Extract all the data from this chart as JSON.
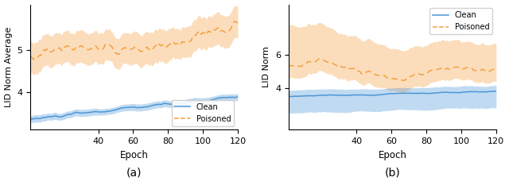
{
  "fig_width": 6.4,
  "fig_height": 2.38,
  "dpi": 100,
  "subplot_a": {
    "title": "(a)",
    "xlabel": "Epoch",
    "ylabel": "LID Norm Average",
    "xticks": [
      40,
      60,
      80,
      100,
      120
    ],
    "yticks_a": [
      4,
      5
    ],
    "clean_color": "#4c96d7",
    "poisoned_color": "#f5a040",
    "clean_fill_alpha": 0.35,
    "poisoned_fill_alpha": 0.35
  },
  "subplot_b": {
    "title": "(b)",
    "xlabel": "Epoch",
    "ylabel": "LID Norm",
    "xticks": [
      40,
      60,
      80,
      100,
      120
    ],
    "yticks_b": [
      4,
      6
    ],
    "clean_color": "#4c96d7",
    "poisoned_color": "#f5a040",
    "clean_fill_alpha": 0.35,
    "poisoned_fill_alpha": 0.35
  }
}
